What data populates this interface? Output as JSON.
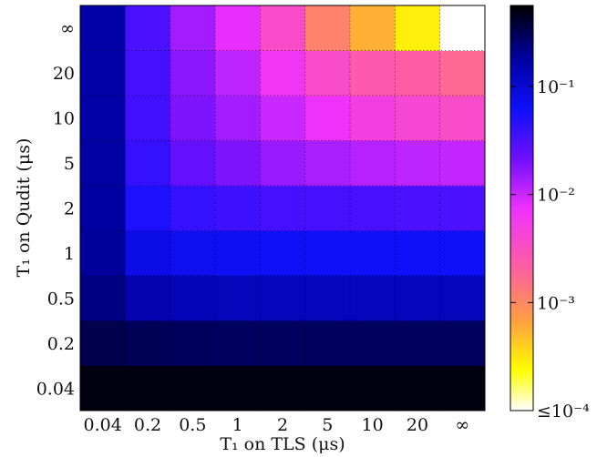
{
  "chart_data": {
    "type": "heatmap",
    "xlabel": "T₁ on TLS (μs)",
    "ylabel": "T₁ on Qudit (μs)",
    "x_categories": [
      "0.04",
      "0.2",
      "0.5",
      "1",
      "2",
      "5",
      "10",
      "20",
      "∞"
    ],
    "y_categories": [
      "0.04",
      "0.2",
      "0.5",
      "1",
      "2",
      "5",
      "10",
      "20",
      "∞"
    ],
    "y_order": "bottom-to-top",
    "colorscale": "gnuplot2 (log)",
    "color_range_log10": [
      -4.0,
      -0.25
    ],
    "colorbar_ticks": [
      {
        "label": "10⁻¹",
        "log10": -1
      },
      {
        "label": "10⁻²",
        "log10": -2
      },
      {
        "label": "10⁻³",
        "log10": -3
      },
      {
        "label": "≤10⁻⁴",
        "log10": -4
      }
    ],
    "values_log10": [
      [
        -0.3,
        -0.3,
        -0.3,
        -0.3,
        -0.3,
        -0.3,
        -0.3,
        -0.3,
        -0.3
      ],
      [
        -0.48,
        -0.52,
        -0.53,
        -0.54,
        -0.54,
        -0.54,
        -0.54,
        -0.54,
        -0.54
      ],
      [
        -0.65,
        -0.82,
        -0.86,
        -0.88,
        -0.89,
        -0.89,
        -0.89,
        -0.89,
        -0.89
      ],
      [
        -0.72,
        -1.1,
        -1.15,
        -1.18,
        -1.19,
        -1.2,
        -1.2,
        -1.2,
        -1.2
      ],
      [
        -0.74,
        -1.28,
        -1.4,
        -1.44,
        -1.47,
        -1.48,
        -1.49,
        -1.5,
        -1.5
      ],
      [
        -0.76,
        -1.4,
        -1.62,
        -1.72,
        -1.82,
        -1.88,
        -1.92,
        -1.95,
        -1.97
      ],
      [
        -0.77,
        -1.45,
        -1.72,
        -1.85,
        -2.0,
        -2.15,
        -2.3,
        -2.38,
        -2.45
      ],
      [
        -0.77,
        -1.48,
        -1.78,
        -1.95,
        -2.2,
        -2.45,
        -2.6,
        -2.65,
        -2.75
      ],
      [
        -0.78,
        -1.5,
        -1.85,
        -2.1,
        -2.45,
        -2.95,
        -3.25,
        -3.55,
        -4.0
      ]
    ]
  }
}
